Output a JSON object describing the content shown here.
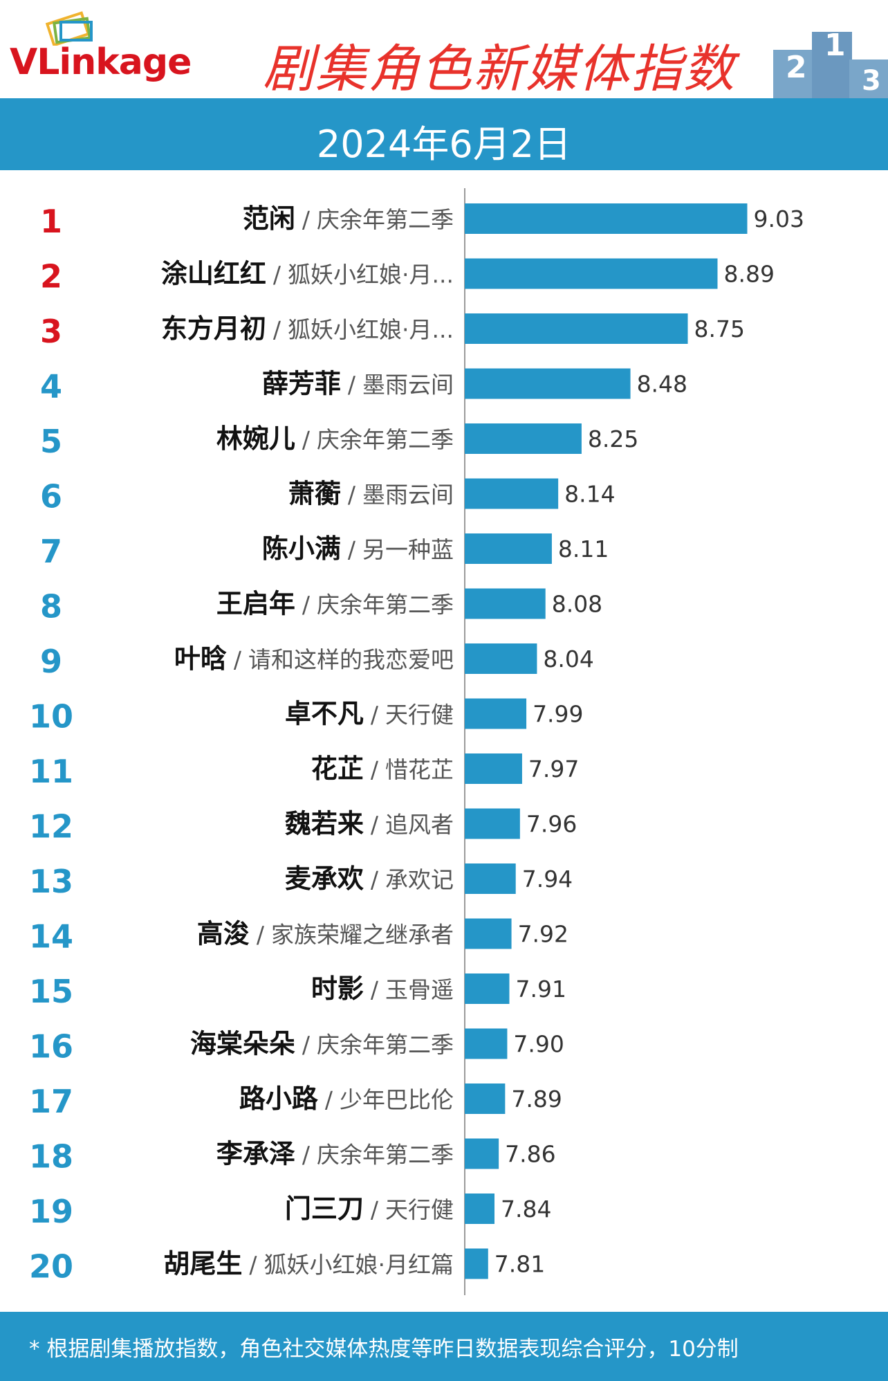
{
  "header": {
    "logo_text_v": "V",
    "logo_text_rest": "Linkage",
    "title": "剧集角色新媒体指数",
    "podium_labels": [
      "2",
      "1",
      "3"
    ]
  },
  "date_bar": {
    "date": "2024年6月2日"
  },
  "colors": {
    "bar": "#2596c8",
    "rank_top": "#d8141e",
    "rank_rest": "#2596c8",
    "title": "#e8322b"
  },
  "chart_data": {
    "type": "bar",
    "orientation": "horizontal",
    "rows": [
      {
        "rank": "1",
        "name": "范闲",
        "show": "庆余年第二季",
        "value": 9.03
      },
      {
        "rank": "2",
        "name": "涂山红红",
        "show": "狐妖小红娘·月...",
        "value": 8.89
      },
      {
        "rank": "3",
        "name": "东方月初",
        "show": "狐妖小红娘·月...",
        "value": 8.75
      },
      {
        "rank": "4",
        "name": "薛芳菲",
        "show": "墨雨云间",
        "value": 8.48
      },
      {
        "rank": "5",
        "name": "林婉儿",
        "show": "庆余年第二季",
        "value": 8.25
      },
      {
        "rank": "6",
        "name": "萧蘅",
        "show": "墨雨云间",
        "value": 8.14
      },
      {
        "rank": "7",
        "name": "陈小满",
        "show": "另一种蓝",
        "value": 8.11
      },
      {
        "rank": "8",
        "name": "王启年",
        "show": "庆余年第二季",
        "value": 8.08
      },
      {
        "rank": "9",
        "name": "叶晗",
        "show": "请和这样的我恋爱吧",
        "value": 8.04
      },
      {
        "rank": "10",
        "name": "卓不凡",
        "show": "天行健",
        "value": 7.99
      },
      {
        "rank": "11",
        "name": "花芷",
        "show": "惜花芷",
        "value": 7.97
      },
      {
        "rank": "12",
        "name": "魏若来",
        "show": "追风者",
        "value": 7.96
      },
      {
        "rank": "13",
        "name": "麦承欢",
        "show": "承欢记",
        "value": 7.94
      },
      {
        "rank": "14",
        "name": "高浚",
        "show": "家族荣耀之继承者",
        "value": 7.92
      },
      {
        "rank": "15",
        "name": "时影",
        "show": "玉骨遥",
        "value": 7.91
      },
      {
        "rank": "16",
        "name": "海棠朵朵",
        "show": "庆余年第二季",
        "value": 7.9
      },
      {
        "rank": "17",
        "name": "路小路",
        "show": "少年巴比伦",
        "value": 7.89
      },
      {
        "rank": "18",
        "name": "李承泽",
        "show": "庆余年第二季",
        "value": 7.86
      },
      {
        "rank": "19",
        "name": "门三刀",
        "show": "天行健",
        "value": 7.84
      },
      {
        "rank": "20",
        "name": "胡尾生",
        "show": "狐妖小红娘·月红篇",
        "value": 7.81
      }
    ],
    "value_labels": [
      "9.03",
      "8.89",
      "8.75",
      "8.48",
      "8.25",
      "8.14",
      "8.11",
      "8.08",
      "8.04",
      "7.99",
      "7.97",
      "7.96",
      "7.94",
      "7.92",
      "7.91",
      "7.90",
      "7.89",
      "7.86",
      "7.84",
      "7.81"
    ],
    "separator": "/",
    "xlim": [
      7.7,
      9.1
    ],
    "grid": false
  },
  "footer": {
    "note": "* 根据剧集播放指数，角色社交媒体热度等昨日数据表现综合评分，10分制"
  }
}
